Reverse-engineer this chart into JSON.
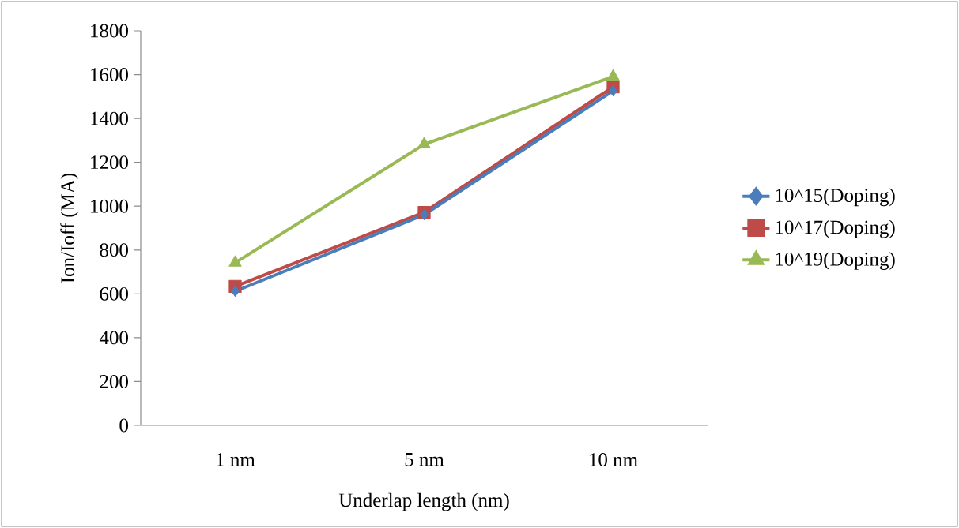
{
  "chart_data": {
    "type": "line",
    "xlabel": "Underlap length (nm)",
    "ylabel": "Ion/Ioff (MA)",
    "categories": [
      "1 nm",
      "5 nm",
      "10 nm"
    ],
    "series": [
      {
        "name": "10^15(Doping)",
        "color": "#4a7ebb",
        "marker": "diamond",
        "values": [
          612,
          961,
          1526
        ]
      },
      {
        "name": "10^17(Doping)",
        "color": "#be4b48",
        "marker": "square",
        "values": [
          634,
          972,
          1544
        ]
      },
      {
        "name": "10^19(Doping)",
        "color": "#98b954",
        "marker": "triangle",
        "values": [
          742,
          1282,
          1591
        ]
      }
    ],
    "ylim": [
      0,
      1800
    ],
    "yticks": [
      0,
      200,
      400,
      600,
      800,
      1000,
      1200,
      1400,
      1600,
      1800
    ],
    "grid": false,
    "legend": "right",
    "line_style": "solid"
  }
}
